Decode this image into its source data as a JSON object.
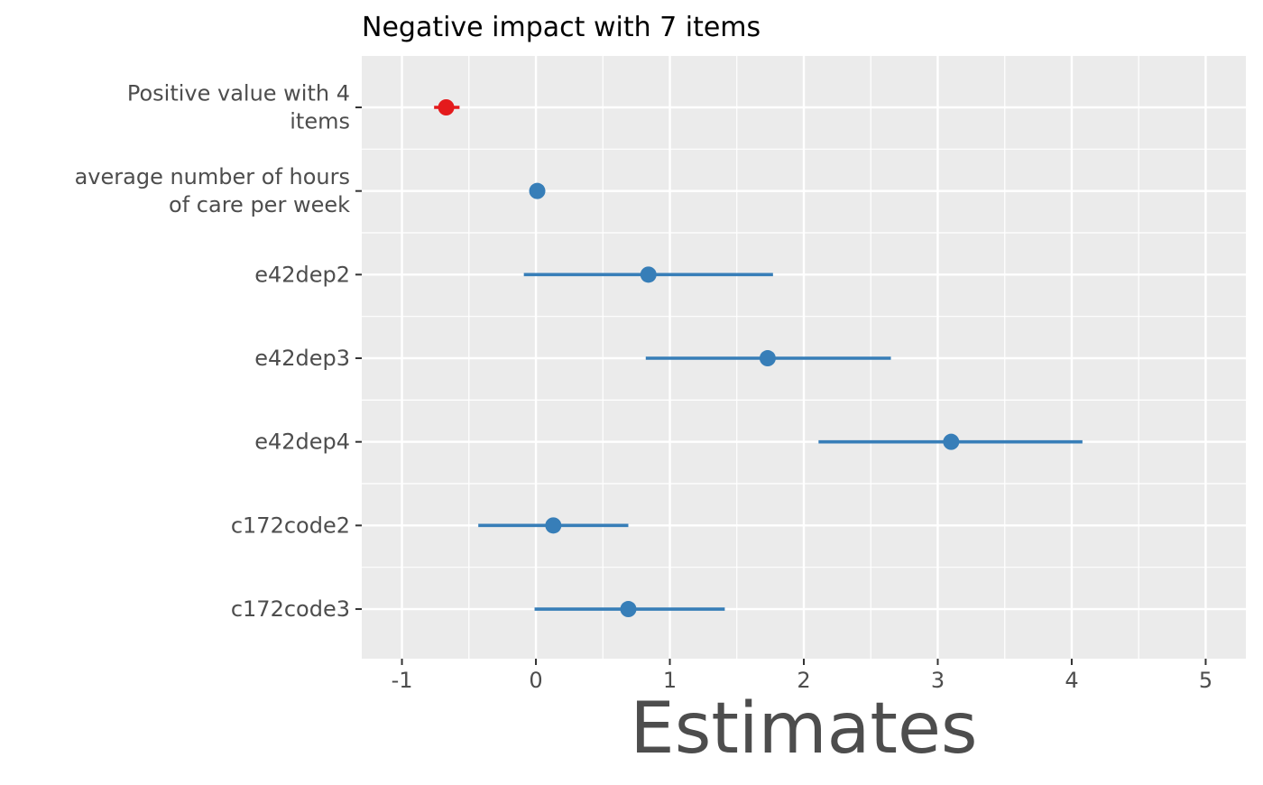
{
  "chart_data": {
    "type": "scatter",
    "title": "Negative impact with 7 items",
    "xlabel": "Estimates",
    "ylabel": "",
    "xlim": [
      -1.3,
      5.3
    ],
    "xticks": [
      -1,
      0,
      1,
      2,
      3,
      4,
      5
    ],
    "xtick_labels": [
      "-1",
      "0",
      "1",
      "2",
      "3",
      "4",
      "5"
    ],
    "grid": true,
    "legend": "none",
    "terms": [
      {
        "label_lines": [
          "Positive value with 4",
          "items"
        ],
        "estimate": -0.67,
        "ci_low": -0.76,
        "ci_high": -0.57,
        "color": "#e41a1c"
      },
      {
        "label_lines": [
          "average number of hours",
          "of care per week"
        ],
        "estimate": 0.01,
        "ci_low": 0.0,
        "ci_high": 0.02,
        "color": "#377eb8"
      },
      {
        "label_lines": [
          "e42dep2"
        ],
        "estimate": 0.84,
        "ci_low": -0.09,
        "ci_high": 1.77,
        "color": "#377eb8"
      },
      {
        "label_lines": [
          "e42dep3"
        ],
        "estimate": 1.73,
        "ci_low": 0.82,
        "ci_high": 2.65,
        "color": "#377eb8"
      },
      {
        "label_lines": [
          "e42dep4"
        ],
        "estimate": 3.1,
        "ci_low": 2.11,
        "ci_high": 4.08,
        "color": "#377eb8"
      },
      {
        "label_lines": [
          "c172code2"
        ],
        "estimate": 0.13,
        "ci_low": -0.43,
        "ci_high": 0.69,
        "color": "#377eb8"
      },
      {
        "label_lines": [
          "c172code3"
        ],
        "estimate": 0.69,
        "ci_low": -0.01,
        "ci_high": 1.41,
        "color": "#377eb8"
      }
    ]
  },
  "colors": {
    "panel_background": "#ebebeb",
    "grid": "#ffffff",
    "text": "#4d4d4d",
    "negative": "#e41a1c",
    "positive": "#377eb8"
  }
}
